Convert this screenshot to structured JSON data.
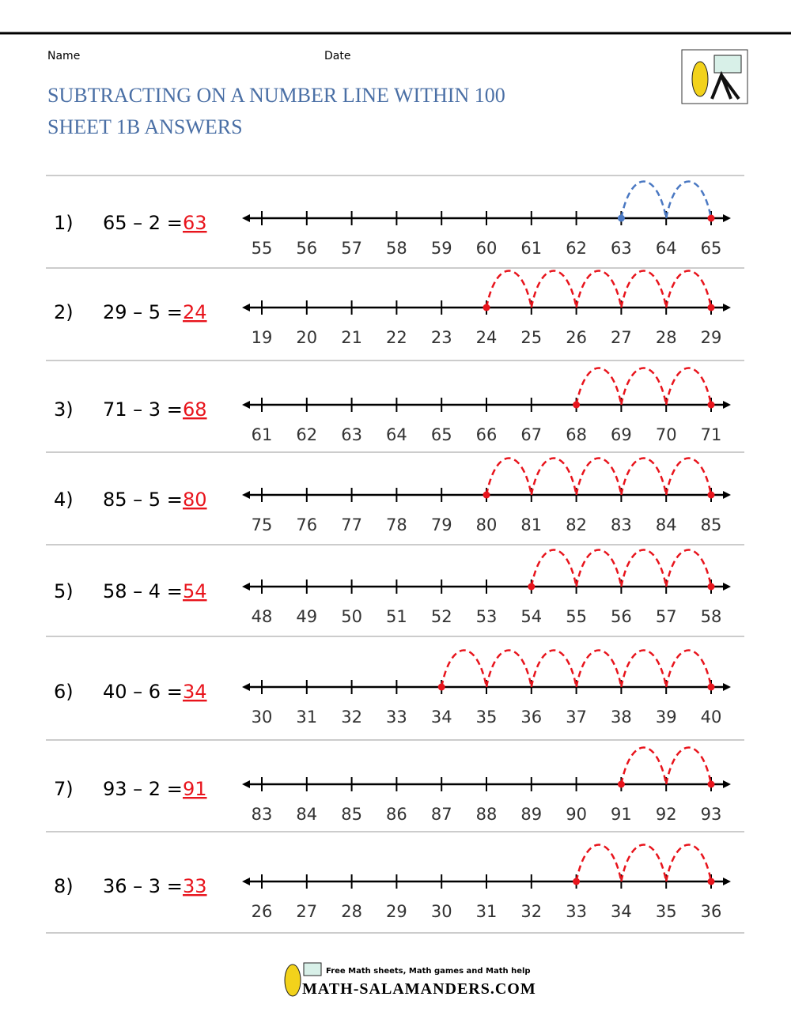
{
  "header": {
    "name_label": "Name",
    "date_label": "Date",
    "title_line1": "SUBTRACTING ON A NUMBER LINE WITHIN 100",
    "title_line2": "SHEET 1B ANSWERS"
  },
  "problems": [
    {
      "number": "1)",
      "expression": "65 – 2 =",
      "answer": 63,
      "ticks": [
        55,
        56,
        57,
        58,
        59,
        60,
        61,
        62,
        63,
        64,
        65
      ],
      "hop_color": "#4a78c2"
    },
    {
      "number": "2)",
      "expression": "29 – 5 =",
      "answer": 24,
      "ticks": [
        19,
        20,
        21,
        22,
        23,
        24,
        25,
        26,
        27,
        28,
        29
      ],
      "hop_color": "#e8141c"
    },
    {
      "number": "3)",
      "expression": "71 – 3 =",
      "answer": 68,
      "ticks": [
        61,
        62,
        63,
        64,
        65,
        66,
        67,
        68,
        69,
        70,
        71
      ],
      "hop_color": "#e8141c"
    },
    {
      "number": "4)",
      "expression": "85 – 5 =",
      "answer": 80,
      "ticks": [
        75,
        76,
        77,
        78,
        79,
        80,
        81,
        82,
        83,
        84,
        85
      ],
      "hop_color": "#e8141c"
    },
    {
      "number": "5)",
      "expression": "58 – 4  =",
      "answer": 54,
      "ticks": [
        48,
        49,
        50,
        51,
        52,
        53,
        54,
        55,
        56,
        57,
        58
      ],
      "hop_color": "#e8141c"
    },
    {
      "number": "6)",
      "expression": "40 – 6 =",
      "answer": 34,
      "ticks": [
        30,
        31,
        32,
        33,
        34,
        35,
        36,
        37,
        38,
        39,
        40
      ],
      "hop_color": "#e8141c"
    },
    {
      "number": "7)",
      "expression": "93 – 2 =",
      "answer": 91,
      "ticks": [
        83,
        84,
        85,
        86,
        87,
        88,
        89,
        90,
        91,
        92,
        93
      ],
      "hop_color": "#e8141c"
    },
    {
      "number": "8)",
      "expression": "36 – 3 =",
      "answer": 33,
      "ticks": [
        26,
        27,
        28,
        29,
        30,
        31,
        32,
        33,
        34,
        35,
        36
      ],
      "hop_color": "#e8141c"
    }
  ],
  "footer": {
    "tagline": "Free Math sheets, Math games and Math help",
    "site": "MATH-SALAMANDERS.COM"
  }
}
